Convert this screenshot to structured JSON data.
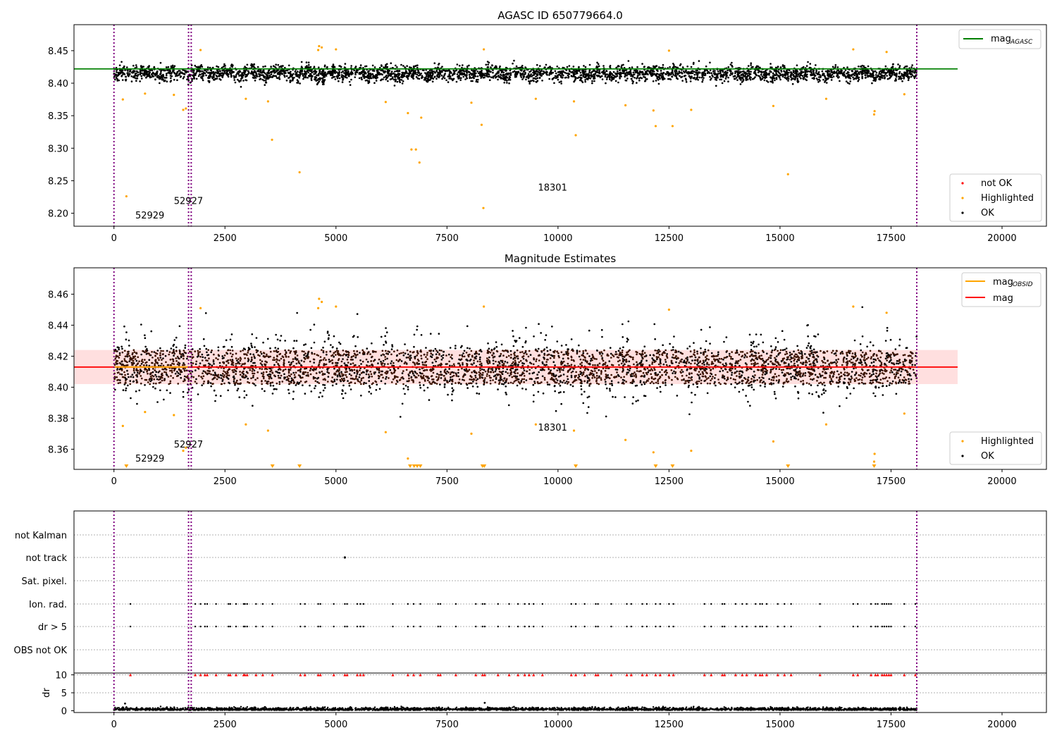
{
  "chart_data": [
    {
      "type": "scatter",
      "title": "AGASC ID 650779664.0",
      "xlim": [
        -900,
        21000
      ],
      "ylim": [
        8.18,
        8.49
      ],
      "xticks": [
        "0",
        "2500",
        "5000",
        "7500",
        "10000",
        "12500",
        "15000",
        "17500",
        "20000"
      ],
      "xtick_values": [
        0,
        2500,
        5000,
        7500,
        10000,
        12500,
        15000,
        17500,
        20000
      ],
      "yticks": [
        "8.20",
        "8.25",
        "8.30",
        "8.35",
        "8.40",
        "8.45"
      ],
      "ytick_values": [
        8.2,
        8.25,
        8.3,
        8.35,
        8.4,
        8.45
      ],
      "hline": {
        "y": 8.422,
        "color": "#008000",
        "xmax": 19000
      },
      "vlines": [
        0,
        1680,
        1740,
        18080
      ],
      "annotations": [
        {
          "text": "52929",
          "x": 480,
          "y": 8.192
        },
        {
          "text": "52927",
          "x": 1350,
          "y": 8.214
        },
        {
          "text": "18301",
          "x": 9550,
          "y": 8.235
        }
      ],
      "ok_band": {
        "center": 8.415,
        "spread": 0.013,
        "xmax": 18080
      },
      "highlighted_outliers": [
        {
          "x": 280,
          "y": 8.226
        },
        {
          "x": 3560,
          "y": 8.313
        },
        {
          "x": 4180,
          "y": 8.263
        },
        {
          "x": 6700,
          "y": 8.298
        },
        {
          "x": 6800,
          "y": 8.298
        },
        {
          "x": 6880,
          "y": 8.278
        },
        {
          "x": 8320,
          "y": 8.208
        },
        {
          "x": 8280,
          "y": 8.336
        },
        {
          "x": 10400,
          "y": 8.32
        },
        {
          "x": 12200,
          "y": 8.334
        },
        {
          "x": 12580,
          "y": 8.334
        },
        {
          "x": 15180,
          "y": 8.26
        },
        {
          "x": 1620,
          "y": 8.361
        },
        {
          "x": 1560,
          "y": 8.359
        },
        {
          "x": 6620,
          "y": 8.354
        },
        {
          "x": 6920,
          "y": 8.347
        },
        {
          "x": 11520,
          "y": 8.366
        },
        {
          "x": 12150,
          "y": 8.358
        },
        {
          "x": 13000,
          "y": 8.359
        },
        {
          "x": 17120,
          "y": 8.352
        },
        {
          "x": 17130,
          "y": 8.357
        },
        {
          "x": 14850,
          "y": 8.365
        },
        {
          "x": 200,
          "y": 8.375
        },
        {
          "x": 3470,
          "y": 8.372
        },
        {
          "x": 9500,
          "y": 8.376
        },
        {
          "x": 6120,
          "y": 8.371
        },
        {
          "x": 8050,
          "y": 8.37
        },
        {
          "x": 10360,
          "y": 8.372
        },
        {
          "x": 16040,
          "y": 8.376
        },
        {
          "x": 700,
          "y": 8.384
        },
        {
          "x": 1350,
          "y": 8.382
        },
        {
          "x": 2970,
          "y": 8.376
        },
        {
          "x": 17800,
          "y": 8.383
        },
        {
          "x": 4620,
          "y": 8.457
        },
        {
          "x": 4600,
          "y": 8.451
        },
        {
          "x": 4680,
          "y": 8.455
        },
        {
          "x": 5000,
          "y": 8.452
        },
        {
          "x": 8330,
          "y": 8.452
        },
        {
          "x": 1950,
          "y": 8.451
        },
        {
          "x": 12500,
          "y": 8.45
        },
        {
          "x": 16650,
          "y": 8.452
        },
        {
          "x": 17400,
          "y": 8.448
        }
      ],
      "legend": {
        "location": "lower right",
        "entries": [
          {
            "label": "not OK",
            "color": "#ff0000"
          },
          {
            "label": "Highlighted",
            "color": "#ffa500"
          },
          {
            "label": "OK",
            "color": "#000000"
          }
        ]
      },
      "legend_line": {
        "location": "upper right",
        "label": "mag",
        "subscript": "AGASC",
        "color": "#008000"
      }
    },
    {
      "type": "scatter",
      "title": "Magnitude Estimates",
      "xlim": [
        -900,
        21000
      ],
      "ylim": [
        8.347,
        8.477
      ],
      "xticks": [
        "0",
        "2500",
        "5000",
        "7500",
        "10000",
        "12500",
        "15000",
        "17500",
        "20000"
      ],
      "xtick_values": [
        0,
        2500,
        5000,
        7500,
        10000,
        12500,
        15000,
        17500,
        20000
      ],
      "yticks": [
        "8.36",
        "8.38",
        "8.40",
        "8.42",
        "8.44",
        "8.46"
      ],
      "ytick_values": [
        8.36,
        8.38,
        8.4,
        8.42,
        8.44,
        8.46
      ],
      "mag_line": {
        "y": 8.413,
        "color": "#ff0000",
        "xmax": 19000
      },
      "mag_band": [
        8.402,
        8.424
      ],
      "obsid_line": {
        "y": 8.413,
        "color": "#ffa500",
        "xmax": 1700
      },
      "vlines": [
        0,
        1680,
        1740,
        18080
      ],
      "annotations": [
        {
          "text": "52929",
          "x": 480,
          "y": 8.352
        },
        {
          "text": "52927",
          "x": 1350,
          "y": 8.361
        },
        {
          "text": "18301",
          "x": 9550,
          "y": 8.372
        }
      ],
      "ok_band": {
        "center": 8.413,
        "spread": 0.02,
        "xmax": 18080
      },
      "down_markers": [
        280,
        3570,
        4180,
        6670,
        6760,
        6830,
        6900,
        8300,
        8340,
        10400,
        12200,
        12580,
        15180,
        17120
      ],
      "legend": {
        "location": "lower right",
        "entries": [
          {
            "label": "Highlighted",
            "color": "#ffa500"
          },
          {
            "label": "OK",
            "color": "#000000"
          }
        ]
      },
      "legend_line": {
        "location": "upper right",
        "entries": [
          {
            "label": "mag",
            "subscript": "OBSID",
            "color": "#ffa500"
          },
          {
            "label": "mag",
            "subscript": "",
            "color": "#ff0000"
          }
        ]
      }
    },
    {
      "type": "scatter",
      "title": "",
      "xlim": [
        -900,
        21000
      ],
      "categories": [
        "not Kalman",
        "not track",
        "Sat. pixel.",
        "Ion. rad.",
        "dr > 5",
        "OBS not OK"
      ],
      "vlines": [
        0,
        1680,
        1740,
        18080
      ],
      "flag_x": [
        370,
        1830,
        1950,
        2050,
        2100,
        2300,
        2580,
        2620,
        2750,
        2920,
        2950,
        3000,
        3200,
        3350,
        3570,
        4200,
        4300,
        4600,
        4650,
        4950,
        5200,
        5250,
        5480,
        5550,
        5620,
        6280,
        6620,
        6750,
        6900,
        7300,
        7350,
        7700,
        8150,
        8300,
        8350,
        8650,
        8900,
        9100,
        9250,
        9350,
        9450,
        9650,
        10300,
        10400,
        10600,
        10850,
        10900,
        11200,
        11550,
        11650,
        11900,
        12000,
        12200,
        12300,
        12500,
        12600,
        13300,
        13450,
        13700,
        13750,
        14000,
        14150,
        14250,
        14450,
        14550,
        14600,
        14700,
        14950,
        15100,
        15250,
        15900,
        16650,
        16750,
        17050,
        17150,
        17200,
        17300,
        17350,
        17400,
        17450,
        17500,
        17800,
        18050
      ],
      "not_track_x": [
        5200
      ],
      "red_markers_y": 10,
      "dr_subplot": {
        "ylabel": "dr",
        "ylim": [
          -0.5,
          10.5
        ],
        "yticks": [
          "0",
          "5",
          "10"
        ],
        "ytick_values": [
          0,
          5,
          10
        ],
        "typical": 0.5
      },
      "xticks": [
        "0",
        "2500",
        "5000",
        "7500",
        "10000",
        "12500",
        "15000",
        "17500",
        "20000"
      ],
      "xtick_values": [
        0,
        2500,
        5000,
        7500,
        10000,
        12500,
        15000,
        17500,
        20000
      ]
    }
  ]
}
